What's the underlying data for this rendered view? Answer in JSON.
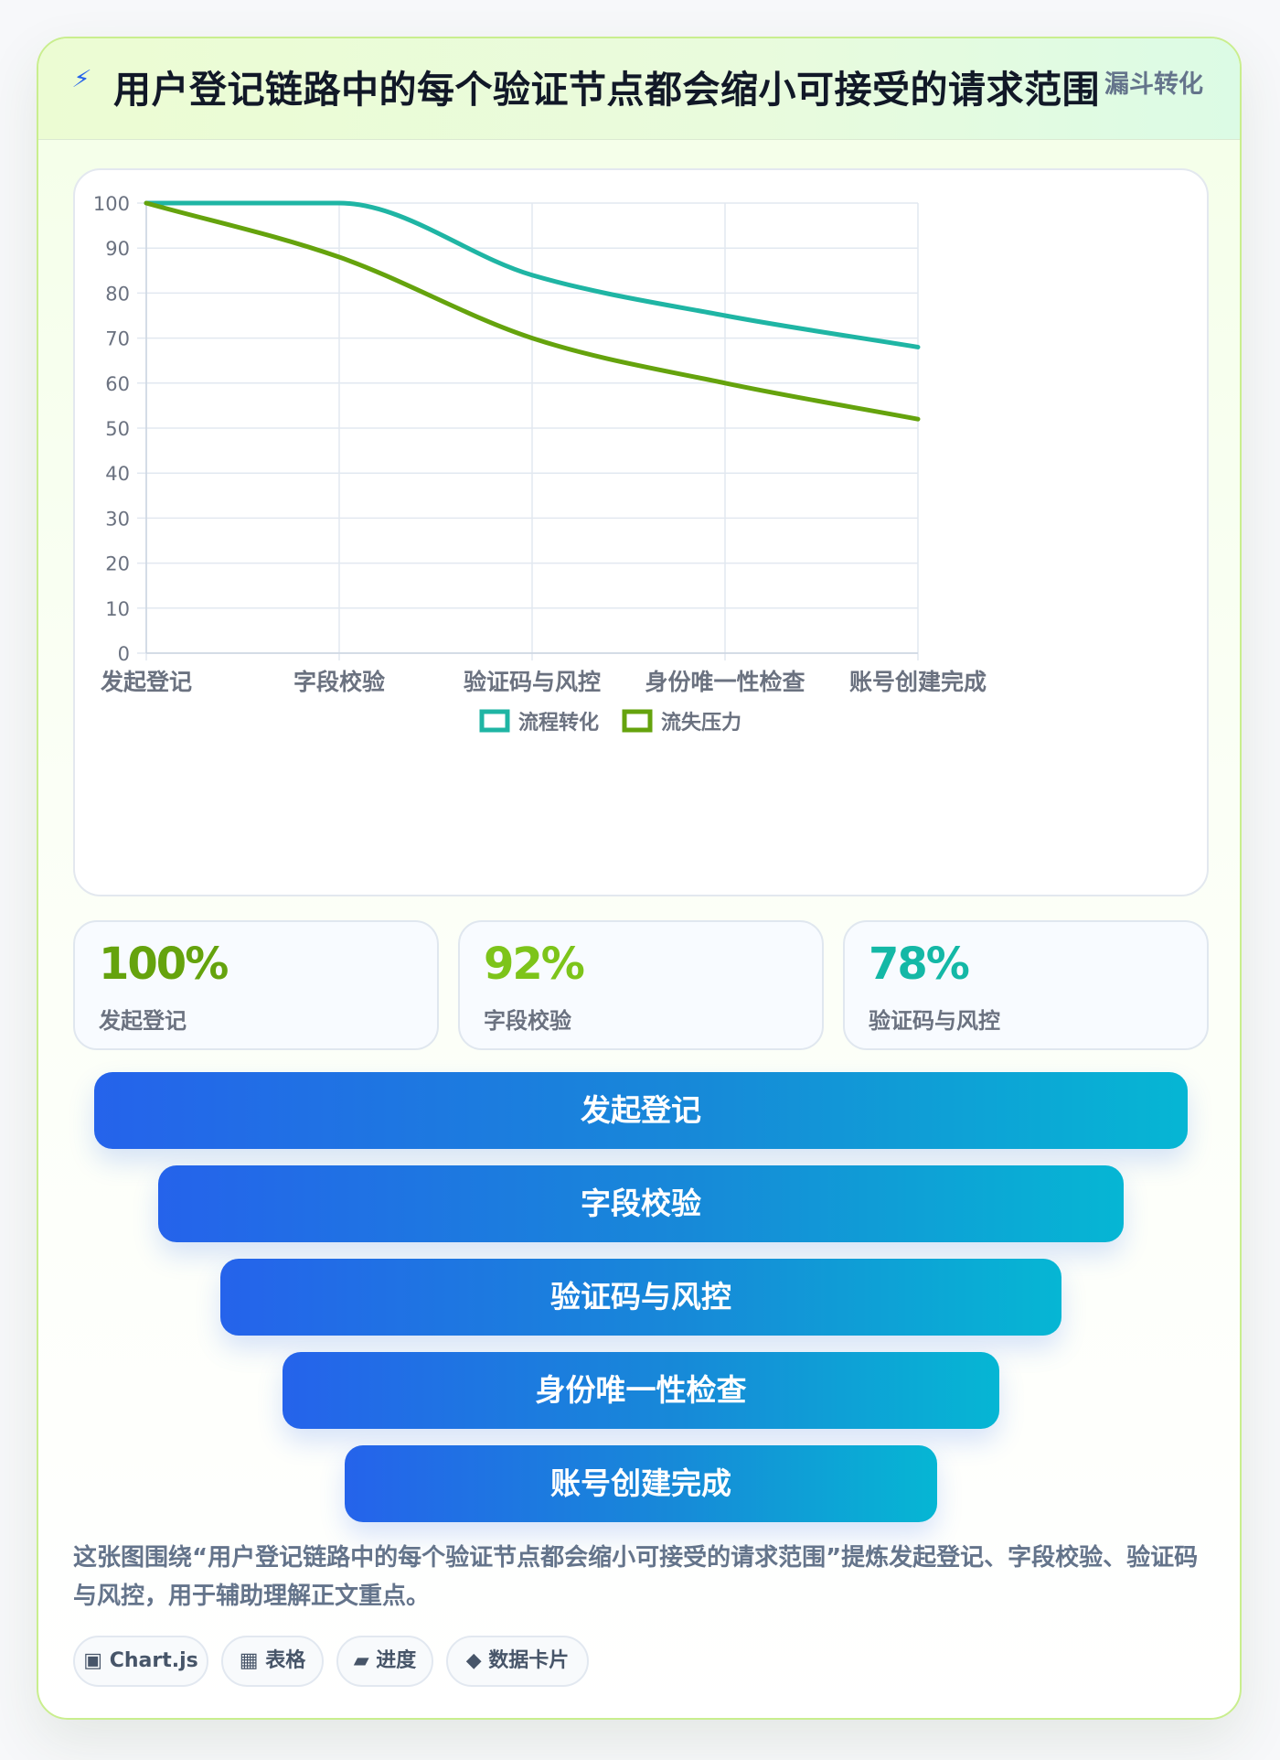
{
  "header": {
    "icon": "lightning-icon",
    "icon_glyph": "⚡",
    "title": "用户登记链路中的每个验证节点都会缩小可接受的请求范围",
    "tag": "漏斗转化"
  },
  "chart_data": {
    "type": "line",
    "categories": [
      "发起登记",
      "字段校验",
      "验证码与风控",
      "身份唯一性检查",
      "账号创建完成"
    ],
    "series": [
      {
        "name": "流程转化",
        "values": [
          100,
          100,
          84,
          75,
          68
        ],
        "color": "#1fb5a4"
      },
      {
        "name": "流失压力",
        "values": [
          100,
          88,
          70,
          60,
          52
        ],
        "color": "#65a30d"
      }
    ],
    "yticks": [
      "0",
      "10",
      "20",
      "30",
      "40",
      "50",
      "60",
      "70",
      "80",
      "90",
      "100"
    ],
    "ylim": [
      0,
      100
    ],
    "grid": true,
    "legend": "bottom"
  },
  "stats": [
    {
      "value": "100%",
      "label": "发起登记",
      "color": "#65a30d"
    },
    {
      "value": "92%",
      "label": "字段校验",
      "color": "#7dc41a"
    },
    {
      "value": "78%",
      "label": "验证码与风控",
      "color": "#14b8a6"
    }
  ],
  "funnel": [
    "发起登记",
    "字段校验",
    "验证码与风控",
    "身份唯一性检查",
    "账号创建完成"
  ],
  "description": "这张图围绕“用户登记链路中的每个验证节点都会缩小可接受的请求范围”提炼发起登记、字段校验、验证码与风控，用于辅助理解正文重点。",
  "chips": [
    {
      "icon": "chart-icon",
      "glyph": "▣",
      "label": "Chart.js"
    },
    {
      "icon": "table-icon",
      "glyph": "▦",
      "label": "表格"
    },
    {
      "icon": "progress-icon",
      "glyph": "▰",
      "label": "进度"
    },
    {
      "icon": "data-card-icon",
      "glyph": "◆",
      "label": "数据卡片"
    }
  ]
}
